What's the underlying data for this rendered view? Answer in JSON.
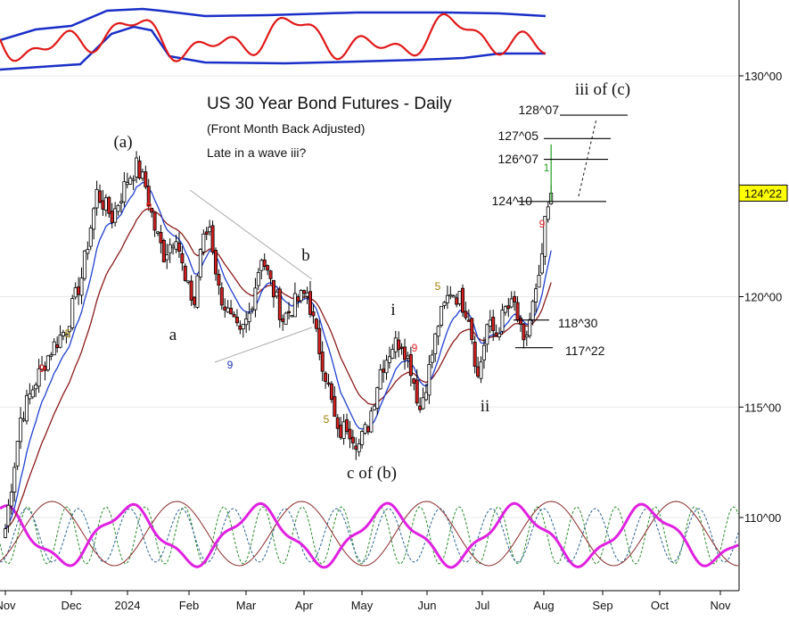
{
  "chart_data": {
    "type": "candlestick",
    "title": "US 30 Year Bond Futures - Daily",
    "subtitle": "(Front Month Back Adjusted)",
    "note": "Late in a wave iii?",
    "x_ticks": [
      "Nov",
      "Dec",
      "2024",
      "Feb",
      "Mar",
      "Apr",
      "May",
      "Jun",
      "Jul",
      "Aug",
      "Sep",
      "Oct",
      "Nov"
    ],
    "y_ticks": [
      "110^00",
      "115^00",
      "120^00",
      "130^00"
    ],
    "y_range": [
      107.0,
      133.5
    ],
    "last_price_label": "124^22",
    "last_price": 124.69,
    "colors": {
      "up_candle": "#ffffff",
      "down_candle": "#d42020",
      "ma_fast": "#1f3fd0",
      "ma_slow": "#8b1a1a",
      "oscillator": "#e01818",
      "bands": "#1a2fc8",
      "cycle_main": "#e020e0",
      "price_box": "#ffff00"
    },
    "price_path": [
      [
        0,
        109.5
      ],
      [
        5,
        114.5
      ],
      [
        10,
        116.2
      ],
      [
        15,
        117.6
      ],
      [
        20,
        118.6
      ],
      [
        25,
        120.9
      ],
      [
        30,
        124.7
      ],
      [
        35,
        123.6
      ],
      [
        40,
        125.3
      ],
      [
        43,
        125.9
      ],
      [
        46,
        125.0
      ],
      [
        49,
        123.1
      ],
      [
        52,
        121.9
      ],
      [
        56,
        122.9
      ],
      [
        59,
        120.6
      ],
      [
        62,
        119.7
      ],
      [
        64,
        122.2
      ],
      [
        67,
        123.2
      ],
      [
        70,
        120.3
      ],
      [
        74,
        118.9
      ],
      [
        77,
        118.2
      ],
      [
        80,
        119.2
      ],
      [
        84,
        121.9
      ],
      [
        87,
        120.6
      ],
      [
        91,
        119.0
      ],
      [
        95,
        119.7
      ],
      [
        99,
        120.2
      ],
      [
        102,
        118.2
      ],
      [
        106,
        115.9
      ],
      [
        109,
        113.7
      ],
      [
        112,
        114.2
      ],
      [
        116,
        113.3
      ],
      [
        119,
        114.2
      ],
      [
        123,
        116.7
      ],
      [
        127,
        117.8
      ],
      [
        130,
        118.0
      ],
      [
        133,
        116.8
      ],
      [
        136,
        114.9
      ],
      [
        139,
        116.7
      ],
      [
        142,
        118.8
      ],
      [
        146,
        120.3
      ],
      [
        149,
        119.9
      ],
      [
        152,
        119.2
      ],
      [
        155,
        116.3
      ],
      [
        158,
        118.7
      ],
      [
        161,
        118.3
      ],
      [
        164,
        119.4
      ],
      [
        167,
        119.6
      ],
      [
        170,
        117.7
      ],
      [
        173,
        119.6
      ],
      [
        175,
        120.6
      ],
      [
        177,
        123.2
      ],
      [
        179,
        124.69
      ]
    ],
    "levels": [
      {
        "label": "128^07",
        "value": 128.22
      },
      {
        "label": "127^05",
        "value": 127.16
      },
      {
        "label": "126^07",
        "value": 126.22
      },
      {
        "label": "124^10",
        "value": 124.31
      },
      {
        "label": "118^30",
        "value": 118.94
      },
      {
        "label": "117^22",
        "value": 117.69
      }
    ],
    "wave_labels": [
      "(a)",
      "a",
      "b",
      "c of (b)",
      "i",
      "ii",
      "iii of (c)"
    ],
    "count_labels": [
      {
        "text": "9",
        "color": "#e02020"
      },
      {
        "text": "5",
        "color": "#a08000"
      },
      {
        "text": "9",
        "color": "#e02020"
      },
      {
        "text": "9",
        "color": "#2030c0"
      },
      {
        "text": "5",
        "color": "#a08000"
      },
      {
        "text": "9",
        "color": "#e02020"
      },
      {
        "text": "5",
        "color": "#a08000"
      },
      {
        "text": "9",
        "color": "#e02020"
      },
      {
        "text": "1",
        "color": "#20a020"
      }
    ]
  }
}
